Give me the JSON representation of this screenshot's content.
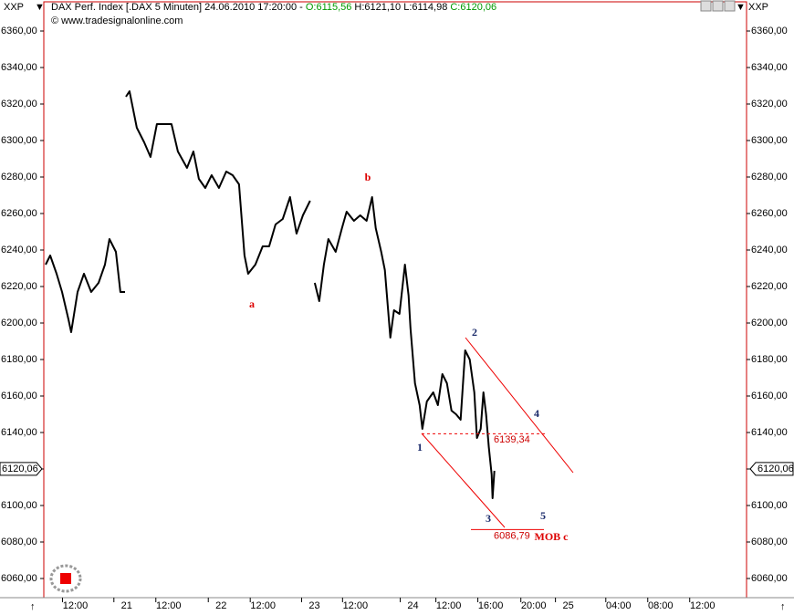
{
  "chart_data": {
    "type": "line",
    "header": {
      "symbol": "XXP",
      "instrument": "DAX Perf. Index [.DAX  5 Minuten] 24.06.2010 17:20:00 - ",
      "open": "O:6115,56",
      "high_low": "H:6121,10 L:6114,98",
      "close": "C:6120,06",
      "copyright": "© www.tradesignalonline.com"
    },
    "last_price": {
      "value": 6120.06,
      "label": "6120,06"
    },
    "x": [
      0.17,
      0.61,
      1.22,
      1.74,
      2.35,
      2.61,
      3.22,
      3.83,
      4.52,
      5.22,
      5.83,
      6.26,
      6.87,
      7.3,
      7.74,
      7.78,
      7.83,
      8.17,
      8.87,
      9.57,
      10.17,
      10.78,
      11.48,
      12.17,
      12.78,
      13.65,
      14.26,
      14.78,
      15.39,
      16.0,
      16.7,
      17.39,
      18.0,
      18.61,
      19.13,
      19.48,
      20.17,
      20.87,
      21.48,
      22.09,
      22.78,
      23.48,
      24.09,
      24.7,
      25.39,
      25.6,
      25.83,
      26.26,
      26.7,
      27.13,
      27.83,
      28.43,
      28.87,
      29.57,
      30.17,
      30.78,
      31.3,
      31.65,
      32.17,
      32.52,
      33.04,
      33.39,
      33.91,
      34.43,
      34.78,
      34.96,
      35.39,
      35.83,
      36.09,
      36.52,
      37.13,
      37.57,
      38.0,
      38.43,
      38.87,
      39.3,
      39.74,
      40.17,
      40.61,
      41.04,
      41.3,
      41.65,
      41.91,
      42.17,
      42.43,
      42.7,
      42.78,
      42.96
    ],
    "series": [
      {
        "name": "DAX",
        "color": "#000000",
        "values": [
          6232,
          6237,
          6227,
          6217,
          6202,
          6195,
          6217,
          6227,
          6217,
          6222,
          6232,
          6246,
          6239,
          6217,
          6217,
          null,
          6324,
          6327,
          6307,
          6299,
          6291,
          6309,
          6309,
          6309,
          6294,
          6285,
          6294,
          6279,
          6274,
          6281,
          6274,
          6283,
          6281,
          6276,
          6237,
          6227,
          6232,
          6242,
          6242,
          6254,
          6257,
          6269,
          6249,
          6259,
          6267,
          null,
          6222,
          6212,
          6232,
          6246,
          6239,
          6252,
          6261,
          6256,
          6259,
          6256,
          6269,
          6252,
          6239,
          6229,
          6192,
          6207,
          6205,
          6232,
          6215,
          6197,
          6167,
          6155,
          6142,
          6157,
          6162,
          6155,
          6172,
          6167,
          6152,
          6150,
          6147,
          6185,
          6180,
          6162,
          6137,
          6142,
          6162,
          6150,
          6132,
          6117,
          6104,
          6119
        ]
      }
    ],
    "levels": [
      {
        "value": 6139.34,
        "label": "6139,34"
      },
      {
        "value": 6086.79,
        "label": "6086,79"
      }
    ],
    "waves": [
      "a",
      "b",
      "1",
      "2",
      "3",
      "4",
      "5",
      "MOB c"
    ],
    "xlim": [
      0,
      67
    ],
    "ylim": [
      6050,
      6376
    ],
    "xticks": [
      {
        "value": 3.0,
        "label": "12:00"
      },
      {
        "value": 7.9,
        "label": "21"
      },
      {
        "value": 11.9,
        "label": "12:00"
      },
      {
        "value": 16.9,
        "label": "22"
      },
      {
        "value": 20.9,
        "label": "12:00"
      },
      {
        "value": 25.8,
        "label": "23"
      },
      {
        "value": 29.7,
        "label": "12:00"
      },
      {
        "value": 35.2,
        "label": "24"
      },
      {
        "value": 38.6,
        "label": "12:00"
      },
      {
        "value": 42.6,
        "label": "16:00"
      },
      {
        "value": 46.7,
        "label": "20:00"
      },
      {
        "value": 50.0,
        "label": "25"
      },
      {
        "value": 54.8,
        "label": "04:00"
      },
      {
        "value": 58.8,
        "label": "08:00"
      },
      {
        "value": 62.8,
        "label": "12:00"
      }
    ],
    "yticks": [
      {
        "value": 6060,
        "label": "6060,00"
      },
      {
        "value": 6080,
        "label": "6080,00"
      },
      {
        "value": 6100,
        "label": "6100,00"
      },
      {
        "value": 6120,
        "label": "6120,00"
      },
      {
        "value": 6140,
        "label": "6140,00"
      },
      {
        "value": 6160,
        "label": "6160,00"
      },
      {
        "value": 6180,
        "label": "6180,00"
      },
      {
        "value": 6200,
        "label": "6200,00"
      },
      {
        "value": 6220,
        "label": "6220,00"
      },
      {
        "value": 6240,
        "label": "6240,00"
      },
      {
        "value": 6260,
        "label": "6260,00"
      },
      {
        "value": 6280,
        "label": "6280,00"
      },
      {
        "value": 6300,
        "label": "6300,00"
      },
      {
        "value": 6320,
        "label": "6320,00"
      },
      {
        "value": 6340,
        "label": "6340,00"
      },
      {
        "value": 6360,
        "label": "6360,00"
      }
    ]
  }
}
